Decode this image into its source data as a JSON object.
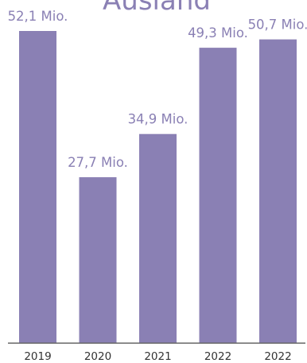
{
  "chart_data": {
    "type": "bar",
    "title": "Ausland",
    "categories": [
      "2019",
      "2020",
      "2021",
      "2022",
      "2022"
    ],
    "values": [
      52.1,
      27.7,
      34.9,
      49.3,
      50.7
    ],
    "value_labels": [
      "52,1 Mio.",
      "27,7 Mio.",
      "34,9 Mio.",
      "49,3 Mio.",
      "50,7 Mio."
    ],
    "ylim": [
      0,
      52.1
    ],
    "grid": false,
    "legend": "none",
    "bar_color": "#8a80b4",
    "label_color": "#8a80b4",
    "tick_color": "#333333"
  }
}
